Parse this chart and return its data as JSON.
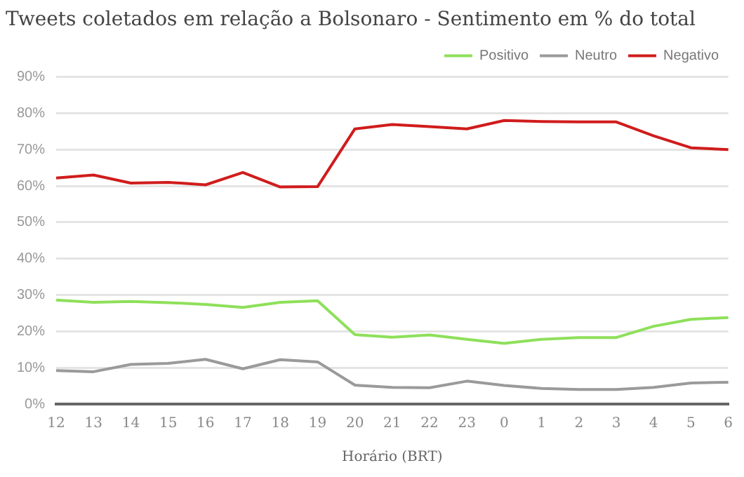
{
  "chart_data": {
    "type": "line",
    "title": "Tweets coletados em relação a Bolsonaro - Sentimento em % do total",
    "xlabel": "Horário (BRT)",
    "categories": [
      "12",
      "13",
      "14",
      "15",
      "16",
      "17",
      "18",
      "19",
      "20",
      "21",
      "22",
      "23",
      "0",
      "1",
      "2",
      "3",
      "4",
      "5",
      "6"
    ],
    "series": [
      {
        "name": "Positivo",
        "color": "#8ee05a",
        "values": [
          28.6,
          28,
          28.2,
          27.9,
          27.4,
          26.6,
          28,
          28.4,
          19.1,
          18.4,
          19,
          17.8,
          16.7,
          17.8,
          18.3,
          18.3,
          21.4,
          23.3,
          23.8
        ]
      },
      {
        "name": "Neutro",
        "color": "#9a9a9a",
        "values": [
          9.2,
          8.9,
          10.9,
          11.2,
          12.3,
          9.7,
          12.2,
          11.6,
          5.2,
          4.6,
          4.5,
          6.3,
          5.1,
          4.3,
          4,
          4,
          4.6,
          5.8,
          6
        ]
      },
      {
        "name": "Negativo",
        "color": "#d01c1c",
        "values": [
          62.2,
          63,
          60.8,
          61,
          60.3,
          63.7,
          59.7,
          59.8,
          75.7,
          76.9,
          76.3,
          75.7,
          78,
          77.7,
          77.6,
          77.6,
          73.8,
          70.5,
          70
        ]
      }
    ],
    "ylim": [
      0,
      90
    ],
    "yticks": [
      {
        "value": 0,
        "label": "0%"
      },
      {
        "value": 10,
        "label": "10%"
      },
      {
        "value": 20,
        "label": "20%"
      },
      {
        "value": 30,
        "label": "30%"
      },
      {
        "value": 40,
        "label": "40%"
      },
      {
        "value": 50,
        "label": "50%"
      },
      {
        "value": 60,
        "label": "60%"
      },
      {
        "value": 70,
        "label": "70%"
      },
      {
        "value": 80,
        "label": "80%"
      },
      {
        "value": 90,
        "label": "90%"
      }
    ],
    "grid": "y",
    "legend": "top right",
    "marker": "none",
    "line_style": "solid"
  }
}
